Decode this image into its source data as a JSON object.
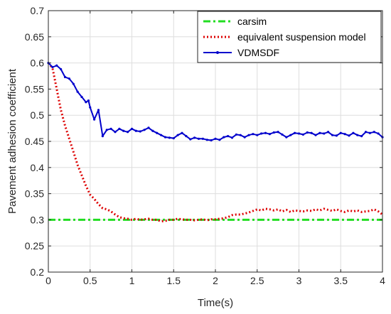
{
  "chart_data": {
    "type": "line",
    "title": "",
    "xlabel": "Time(s)",
    "ylabel": "Pavement adhesion coefficient",
    "xlim": [
      0,
      4
    ],
    "ylim": [
      0.2,
      0.7
    ],
    "xticks": [
      0,
      0.5,
      1,
      1.5,
      2,
      2.5,
      3,
      3.5,
      4
    ],
    "xtick_labels": [
      "0",
      "0.5",
      "1",
      "1.5",
      "2",
      "2.5",
      "3",
      "3.5",
      "4"
    ],
    "yticks": [
      0.2,
      0.25,
      0.3,
      0.35,
      0.4,
      0.45,
      0.5,
      0.55,
      0.6,
      0.65,
      0.7
    ],
    "ytick_labels": [
      "0.2",
      "0.25",
      "0.3",
      "0.35",
      "0.4",
      "0.45",
      "0.5",
      "0.55",
      "0.6",
      "0.65",
      "0.7"
    ],
    "grid": true,
    "legend_position": "top-right",
    "series": [
      {
        "name": "carsim",
        "color": "#22dd22",
        "style": "dash-dot",
        "x": [
          0,
          4
        ],
        "y": [
          0.3,
          0.3
        ]
      },
      {
        "name": "equivalent suspension model",
        "color": "#dd0000",
        "style": "dotted",
        "x": [
          0,
          0.05,
          0.1,
          0.15,
          0.2,
          0.25,
          0.3,
          0.35,
          0.4,
          0.45,
          0.5,
          0.55,
          0.6,
          0.65,
          0.7,
          0.75,
          0.8,
          0.85,
          0.9,
          0.95,
          1.0,
          1.05,
          1.1,
          1.15,
          1.2,
          1.25,
          1.3,
          1.35,
          1.4,
          1.45,
          1.5,
          1.55,
          1.6,
          1.65,
          1.7,
          1.75,
          1.8,
          1.85,
          1.9,
          1.95,
          2.0,
          2.05,
          2.1,
          2.15,
          2.2,
          2.25,
          2.3,
          2.35,
          2.4,
          2.45,
          2.5,
          2.55,
          2.6,
          2.65,
          2.7,
          2.75,
          2.8,
          2.85,
          2.9,
          2.95,
          3.0,
          3.05,
          3.1,
          3.15,
          3.2,
          3.25,
          3.3,
          3.35,
          3.4,
          3.45,
          3.5,
          3.55,
          3.6,
          3.65,
          3.7,
          3.75,
          3.8,
          3.85,
          3.9,
          3.95,
          4.0
        ],
        "y": [
          0.6,
          0.59,
          0.55,
          0.51,
          0.48,
          0.455,
          0.43,
          0.405,
          0.385,
          0.365,
          0.348,
          0.34,
          0.33,
          0.322,
          0.32,
          0.316,
          0.31,
          0.305,
          0.303,
          0.302,
          0.3,
          0.302,
          0.3,
          0.301,
          0.302,
          0.3,
          0.3,
          0.297,
          0.298,
          0.3,
          0.3,
          0.302,
          0.301,
          0.3,
          0.3,
          0.299,
          0.3,
          0.301,
          0.299,
          0.301,
          0.301,
          0.302,
          0.303,
          0.305,
          0.309,
          0.31,
          0.31,
          0.312,
          0.314,
          0.317,
          0.32,
          0.318,
          0.321,
          0.32,
          0.318,
          0.32,
          0.316,
          0.319,
          0.315,
          0.318,
          0.317,
          0.316,
          0.318,
          0.317,
          0.32,
          0.318,
          0.321,
          0.319,
          0.317,
          0.32,
          0.317,
          0.315,
          0.318,
          0.316,
          0.318,
          0.315,
          0.316,
          0.317,
          0.32,
          0.316,
          0.31
        ]
      },
      {
        "name": "VDMSDF",
        "color": "#0000cc",
        "style": "solid-marker",
        "x": [
          0,
          0.05,
          0.1,
          0.15,
          0.2,
          0.25,
          0.3,
          0.35,
          0.4,
          0.45,
          0.48,
          0.5,
          0.55,
          0.6,
          0.65,
          0.7,
          0.75,
          0.8,
          0.85,
          0.9,
          0.95,
          1.0,
          1.05,
          1.1,
          1.15,
          1.2,
          1.25,
          1.3,
          1.35,
          1.4,
          1.45,
          1.5,
          1.55,
          1.6,
          1.65,
          1.7,
          1.75,
          1.8,
          1.85,
          1.9,
          1.95,
          2.0,
          2.05,
          2.1,
          2.15,
          2.2,
          2.25,
          2.3,
          2.35,
          2.4,
          2.45,
          2.5,
          2.55,
          2.6,
          2.65,
          2.7,
          2.75,
          2.8,
          2.85,
          2.9,
          2.95,
          3.0,
          3.05,
          3.1,
          3.15,
          3.2,
          3.25,
          3.3,
          3.35,
          3.4,
          3.45,
          3.5,
          3.55,
          3.6,
          3.65,
          3.7,
          3.75,
          3.8,
          3.85,
          3.9,
          3.95,
          4.0
        ],
        "y": [
          0.6,
          0.592,
          0.595,
          0.588,
          0.573,
          0.57,
          0.56,
          0.545,
          0.535,
          0.525,
          0.528,
          0.515,
          0.492,
          0.51,
          0.46,
          0.472,
          0.474,
          0.468,
          0.474,
          0.47,
          0.468,
          0.474,
          0.47,
          0.469,
          0.472,
          0.476,
          0.47,
          0.466,
          0.462,
          0.458,
          0.457,
          0.456,
          0.462,
          0.466,
          0.46,
          0.454,
          0.457,
          0.455,
          0.455,
          0.453,
          0.452,
          0.455,
          0.453,
          0.458,
          0.46,
          0.457,
          0.463,
          0.462,
          0.458,
          0.462,
          0.464,
          0.462,
          0.465,
          0.466,
          0.464,
          0.467,
          0.468,
          0.463,
          0.458,
          0.462,
          0.466,
          0.465,
          0.463,
          0.467,
          0.466,
          0.462,
          0.466,
          0.465,
          0.468,
          0.462,
          0.461,
          0.466,
          0.464,
          0.461,
          0.466,
          0.462,
          0.46,
          0.468,
          0.466,
          0.468,
          0.465,
          0.458
        ]
      }
    ]
  }
}
